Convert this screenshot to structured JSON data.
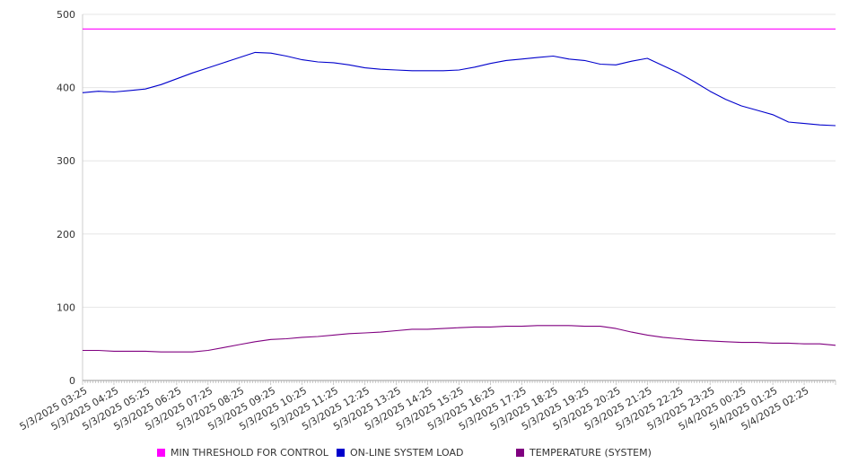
{
  "chart_data": {
    "type": "line",
    "title": "",
    "xlabel": "",
    "ylabel": "",
    "ylim": [
      0,
      500
    ],
    "yticks": [
      0,
      100,
      200,
      300,
      400,
      500
    ],
    "grid": true,
    "legend_position": "bottom",
    "x_tick_labels": [
      "5/3/2025 03:25",
      "5/3/2025 04:25",
      "5/3/2025 05:25",
      "5/3/2025 06:25",
      "5/3/2025 07:25",
      "5/3/2025 08:25",
      "5/3/2025 09:25",
      "5/3/2025 10:25",
      "5/3/2025 11:25",
      "5/3/2025 12:25",
      "5/3/2025 13:25",
      "5/3/2025 14:25",
      "5/3/2025 15:25",
      "5/3/2025 16:25",
      "5/3/2025 17:25",
      "5/3/2025 18:25",
      "5/3/2025 19:25",
      "5/3/2025 20:25",
      "5/3/2025 21:25",
      "5/3/2025 22:25",
      "5/3/2025 23:25",
      "5/4/2025 00:25",
      "5/4/2025 01:25",
      "5/4/2025 02:25"
    ],
    "x_end": "5/4/2025 03:25",
    "series": [
      {
        "name": "MIN THRESHOLD FOR CONTROL",
        "color": "#ff00ff",
        "x": [
          "5/3/2025 03:25",
          "5/4/2025 03:25"
        ],
        "y": [
          480,
          480
        ]
      },
      {
        "name": "ON-LINE SYSTEM LOAD",
        "color": "#0000cc",
        "x": [
          "5/3/2025 03:25",
          "5/3/2025 03:55",
          "5/3/2025 04:25",
          "5/3/2025 04:55",
          "5/3/2025 05:25",
          "5/3/2025 05:55",
          "5/3/2025 06:25",
          "5/3/2025 06:55",
          "5/3/2025 07:25",
          "5/3/2025 07:55",
          "5/3/2025 08:25",
          "5/3/2025 08:55",
          "5/3/2025 09:25",
          "5/3/2025 09:55",
          "5/3/2025 10:25",
          "5/3/2025 10:55",
          "5/3/2025 11:25",
          "5/3/2025 11:55",
          "5/3/2025 12:25",
          "5/3/2025 12:55",
          "5/3/2025 13:25",
          "5/3/2025 13:55",
          "5/3/2025 14:25",
          "5/3/2025 14:55",
          "5/3/2025 15:25",
          "5/3/2025 15:55",
          "5/3/2025 16:25",
          "5/3/2025 16:55",
          "5/3/2025 17:25",
          "5/3/2025 17:55",
          "5/3/2025 18:25",
          "5/3/2025 18:55",
          "5/3/2025 19:25",
          "5/3/2025 19:55",
          "5/3/2025 20:25",
          "5/3/2025 20:55",
          "5/3/2025 21:25",
          "5/3/2025 21:55",
          "5/3/2025 22:25",
          "5/3/2025 22:55",
          "5/3/2025 23:25",
          "5/3/2025 23:55",
          "5/4/2025 00:25",
          "5/4/2025 00:55",
          "5/4/2025 01:25",
          "5/4/2025 01:55",
          "5/4/2025 02:25",
          "5/4/2025 02:55",
          "5/4/2025 03:25"
        ],
        "y": [
          393,
          395,
          394,
          396,
          398,
          404,
          412,
          420,
          427,
          434,
          441,
          448,
          447,
          443,
          438,
          435,
          434,
          431,
          427,
          425,
          424,
          423,
          423,
          423,
          424,
          428,
          433,
          437,
          439,
          441,
          443,
          439,
          437,
          432,
          431,
          436,
          440,
          430,
          420,
          408,
          395,
          384,
          375,
          369,
          363,
          353,
          351,
          349,
          348
        ]
      },
      {
        "name": "TEMPERATURE (SYSTEM)",
        "color": "#800080",
        "x": [
          "5/3/2025 03:25",
          "5/3/2025 03:55",
          "5/3/2025 04:25",
          "5/3/2025 04:55",
          "5/3/2025 05:25",
          "5/3/2025 05:55",
          "5/3/2025 06:25",
          "5/3/2025 06:55",
          "5/3/2025 07:25",
          "5/3/2025 07:55",
          "5/3/2025 08:25",
          "5/3/2025 08:55",
          "5/3/2025 09:25",
          "5/3/2025 09:55",
          "5/3/2025 10:25",
          "5/3/2025 10:55",
          "5/3/2025 11:25",
          "5/3/2025 11:55",
          "5/3/2025 12:25",
          "5/3/2025 12:55",
          "5/3/2025 13:25",
          "5/3/2025 13:55",
          "5/3/2025 14:25",
          "5/3/2025 14:55",
          "5/3/2025 15:25",
          "5/3/2025 15:55",
          "5/3/2025 16:25",
          "5/3/2025 16:55",
          "5/3/2025 17:25",
          "5/3/2025 17:55",
          "5/3/2025 18:25",
          "5/3/2025 18:55",
          "5/3/2025 19:25",
          "5/3/2025 19:55",
          "5/3/2025 20:25",
          "5/3/2025 20:55",
          "5/3/2025 21:25",
          "5/3/2025 21:55",
          "5/3/2025 22:25",
          "5/3/2025 22:55",
          "5/3/2025 23:25",
          "5/3/2025 23:55",
          "5/4/2025 00:25",
          "5/4/2025 00:55",
          "5/4/2025 01:25",
          "5/4/2025 01:55",
          "5/4/2025 02:25",
          "5/4/2025 02:55",
          "5/4/2025 03:25"
        ],
        "y": [
          41,
          41,
          40,
          40,
          40,
          39,
          39,
          39,
          41,
          45,
          49,
          53,
          56,
          57,
          59,
          60,
          62,
          64,
          65,
          66,
          68,
          70,
          70,
          71,
          72,
          73,
          73,
          74,
          74,
          75,
          75,
          75,
          74,
          74,
          71,
          66,
          62,
          59,
          57,
          55,
          54,
          53,
          52,
          52,
          51,
          51,
          50,
          50,
          48
        ]
      }
    ]
  }
}
